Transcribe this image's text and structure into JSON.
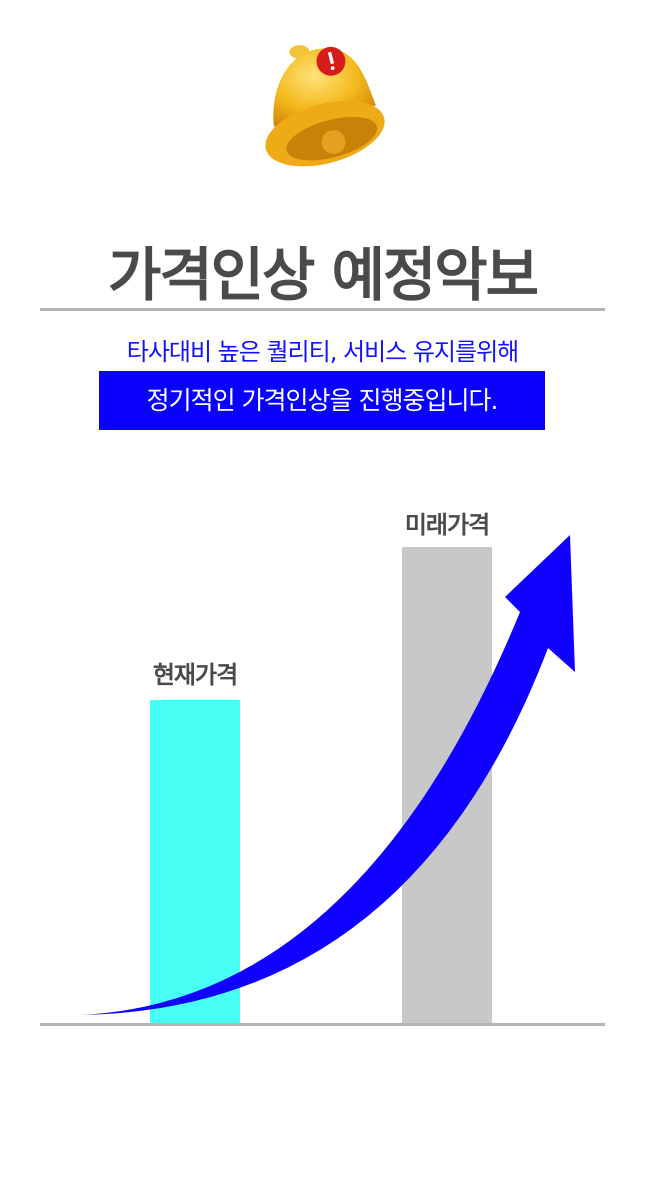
{
  "header": {
    "title": "가격인상 예정악보",
    "subtitle": "타사대비 높은 퀄리티, 서비스 유지를위해",
    "highlight": "정기적인 가격인상을 진행중입니다."
  },
  "icons": {
    "bell": "bell-alert-icon"
  },
  "colors": {
    "title": "#4a4a4a",
    "accent": "#0a00ff",
    "current_bar": "#47fff5",
    "future_bar": "#c8c8c8",
    "arrow": "#1000ff"
  },
  "bars": [
    {
      "label": "현재가격",
      "color": "#47fff5"
    },
    {
      "label": "미래가격",
      "color": "#c8c8c8"
    }
  ]
}
